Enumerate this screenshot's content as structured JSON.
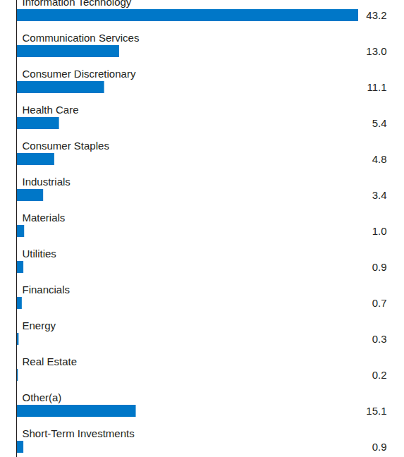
{
  "chart_data": {
    "type": "bar",
    "orientation": "horizontal",
    "categories": [
      "Information Technology",
      "Communication Services",
      "Consumer Discretionary",
      "Health Care",
      "Consumer Staples",
      "Industrials",
      "Materials",
      "Utilities",
      "Financials",
      "Energy",
      "Real Estate",
      "Other(a)",
      "Short-Term Investments"
    ],
    "values": [
      43.2,
      13.0,
      11.1,
      5.4,
      4.8,
      3.4,
      1.0,
      0.9,
      0.7,
      0.3,
      0.2,
      15.1,
      0.9
    ],
    "value_labels": [
      "43.2",
      "13.0",
      "11.1",
      "5.4",
      "4.8",
      "3.4",
      "1.0",
      "0.9",
      "0.7",
      "0.3",
      "0.2",
      "15.1",
      "0.9"
    ],
    "color": "#0077c8",
    "xlim": [
      0,
      43.2
    ],
    "data_labels": true,
    "tick_labels": false
  }
}
